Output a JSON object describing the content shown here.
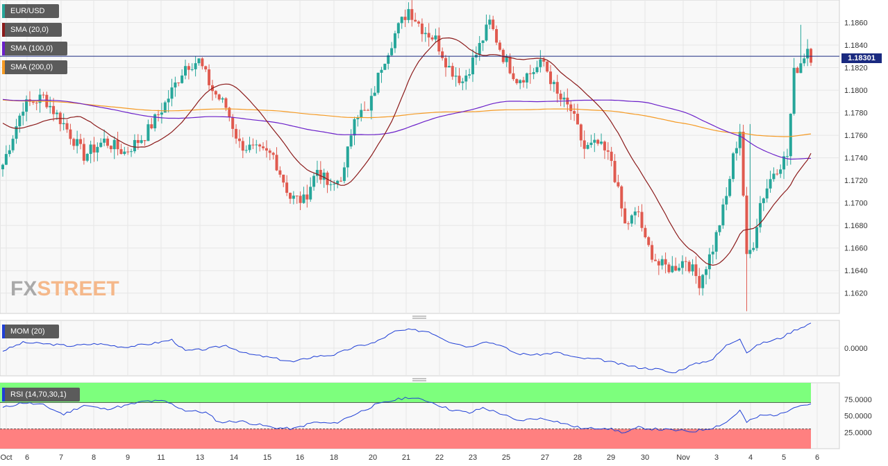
{
  "watermark": {
    "left": "FX",
    "right": "STREET"
  },
  "legends": {
    "main": [
      {
        "label": "EUR/USD",
        "color": "#26a69a"
      },
      {
        "label": "SMA (20,0)",
        "color": "#8b1a1a"
      },
      {
        "label": "SMA (100,0)",
        "color": "#6a1fc9"
      },
      {
        "label": "SMA (200,0)",
        "color": "#f59a23"
      }
    ],
    "mom": {
      "label": "MOM (20)",
      "color": "#1f3fd6"
    },
    "rsi": {
      "label": "RSI (14,70,30,1)",
      "color": "#1f3fd6"
    }
  },
  "current_price": {
    "label": "1.18301",
    "value": 1.18301,
    "color": "#1a2a80"
  },
  "chart_data": [
    {
      "name": "EUR/USD",
      "type": "candlestick",
      "ylim": [
        1.1602,
        1.188
      ],
      "yticks": [
        "1.1620",
        "1.1640",
        "1.1660",
        "1.1680",
        "1.1700",
        "1.1720",
        "1.1740",
        "1.1760",
        "1.1780",
        "1.1800",
        "1.1820",
        "1.1840",
        "1.1860"
      ],
      "x_labels": [
        "Oct",
        "6",
        "7",
        "8",
        "9",
        "11",
        "13",
        "14",
        "15",
        "16",
        "18",
        "20",
        "21",
        "22",
        "23",
        "25",
        "27",
        "28",
        "29",
        "30",
        "Nov",
        "3",
        "4",
        "5",
        "6"
      ],
      "colors": {
        "up": "#26a69a",
        "down": "#e05a4f",
        "grid": "#eeeeee"
      },
      "anchors_close": [
        [
          0,
          1.1734
        ],
        [
          6,
          1.1786
        ],
        [
          12,
          1.1794
        ],
        [
          18,
          1.177
        ],
        [
          24,
          1.1742
        ],
        [
          30,
          1.1755
        ],
        [
          36,
          1.1745
        ],
        [
          42,
          1.176
        ],
        [
          48,
          1.1788
        ],
        [
          54,
          1.1822
        ],
        [
          58,
          1.1826
        ],
        [
          62,
          1.18
        ],
        [
          66,
          1.1785
        ],
        [
          70,
          1.1752
        ],
        [
          76,
          1.1745
        ],
        [
          80,
          1.1742
        ],
        [
          85,
          1.1705
        ],
        [
          89,
          1.1702
        ],
        [
          93,
          1.173
        ],
        [
          97,
          1.1712
        ],
        [
          101,
          1.1728
        ],
        [
          104,
          1.178
        ],
        [
          108,
          1.178
        ],
        [
          112,
          1.1822
        ],
        [
          116,
          1.185
        ],
        [
          120,
          1.1872
        ],
        [
          124,
          1.1855
        ],
        [
          128,
          1.1845
        ],
        [
          132,
          1.182
        ],
        [
          136,
          1.1808
        ],
        [
          140,
          1.1832
        ],
        [
          144,
          1.186
        ],
        [
          148,
          1.183
        ],
        [
          152,
          1.181
        ],
        [
          156,
          1.1815
        ],
        [
          160,
          1.1825
        ],
        [
          164,
          1.1795
        ],
        [
          168,
          1.1782
        ],
        [
          172,
          1.1748
        ],
        [
          176,
          1.1752
        ],
        [
          180,
          1.1738
        ],
        [
          184,
          1.168
        ],
        [
          188,
          1.1692
        ],
        [
          190,
          1.1665
        ],
        [
          194,
          1.1645
        ],
        [
          198,
          1.1642
        ],
        [
          202,
          1.165
        ],
        [
          206,
          1.163
        ],
        [
          210,
          1.166
        ],
        [
          214,
          1.1705
        ],
        [
          216,
          1.174
        ],
        [
          218,
          1.1765
        ],
        [
          220,
          1.165
        ],
        [
          222,
          1.1665
        ],
        [
          224,
          1.17
        ],
        [
          228,
          1.1728
        ],
        [
          232,
          1.1742
        ],
        [
          234,
          1.1815
        ],
        [
          236,
          1.1825
        ],
        [
          238,
          1.1838
        ],
        [
          239,
          1.183
        ]
      ]
    },
    {
      "name": "MOM (20)",
      "type": "line",
      "yticks": [
        "0.0000"
      ],
      "anchors": [
        [
          0,
          -0.0005
        ],
        [
          6,
          0.001
        ],
        [
          12,
          0.0008
        ],
        [
          20,
          0.0004
        ],
        [
          28,
          0.0008
        ],
        [
          36,
          0.0002
        ],
        [
          44,
          0.0008
        ],
        [
          50,
          0.0015
        ],
        [
          54,
          -0.0005
        ],
        [
          60,
          -0.0002
        ],
        [
          66,
          0.0005
        ],
        [
          72,
          -0.001
        ],
        [
          80,
          -0.0018
        ],
        [
          86,
          -0.0025
        ],
        [
          92,
          -0.0015
        ],
        [
          98,
          -0.0012
        ],
        [
          104,
          0.0002
        ],
        [
          110,
          0.001
        ],
        [
          116,
          0.003
        ],
        [
          120,
          0.0033
        ],
        [
          126,
          0.003
        ],
        [
          132,
          0.0012
        ],
        [
          138,
          0.0002
        ],
        [
          142,
          0.0012
        ],
        [
          146,
          0.0008
        ],
        [
          152,
          -0.001
        ],
        [
          158,
          -0.0012
        ],
        [
          164,
          -0.0008
        ],
        [
          170,
          -0.0018
        ],
        [
          176,
          -0.002
        ],
        [
          182,
          -0.0028
        ],
        [
          188,
          -0.0035
        ],
        [
          194,
          -0.0038
        ],
        [
          198,
          -0.0045
        ],
        [
          204,
          -0.003
        ],
        [
          210,
          -0.002
        ],
        [
          214,
          0.0005
        ],
        [
          218,
          0.0018
        ],
        [
          220,
          -0.0008
        ],
        [
          224,
          0.0008
        ],
        [
          230,
          0.0018
        ],
        [
          234,
          0.0032
        ],
        [
          239,
          0.0045
        ]
      ]
    },
    {
      "name": "RSI (14,70,30,1)",
      "type": "line",
      "ylim": [
        0,
        100
      ],
      "overbought": 70,
      "oversold": 30,
      "yticks": [
        "75.0000",
        "50.0000",
        "25.0000"
      ],
      "anchors": [
        [
          0,
          62
        ],
        [
          6,
          70
        ],
        [
          12,
          66
        ],
        [
          18,
          52
        ],
        [
          24,
          66
        ],
        [
          30,
          60
        ],
        [
          36,
          65
        ],
        [
          42,
          72
        ],
        [
          48,
          72
        ],
        [
          54,
          58
        ],
        [
          60,
          55
        ],
        [
          64,
          40
        ],
        [
          70,
          42
        ],
        [
          76,
          36
        ],
        [
          80,
          32
        ],
        [
          86,
          30
        ],
        [
          92,
          40
        ],
        [
          98,
          38
        ],
        [
          104,
          52
        ],
        [
          110,
          66
        ],
        [
          116,
          74
        ],
        [
          120,
          78
        ],
        [
          126,
          72
        ],
        [
          132,
          60
        ],
        [
          138,
          54
        ],
        [
          142,
          62
        ],
        [
          148,
          52
        ],
        [
          152,
          42
        ],
        [
          158,
          46
        ],
        [
          162,
          44
        ],
        [
          168,
          35
        ],
        [
          172,
          30
        ],
        [
          178,
          32
        ],
        [
          184,
          24
        ],
        [
          188,
          32
        ],
        [
          192,
          30
        ],
        [
          198,
          28
        ],
        [
          204,
          26
        ],
        [
          210,
          32
        ],
        [
          214,
          40
        ],
        [
          218,
          58
        ],
        [
          220,
          40
        ],
        [
          224,
          50
        ],
        [
          230,
          52
        ],
        [
          234,
          64
        ],
        [
          239,
          68
        ]
      ]
    }
  ]
}
